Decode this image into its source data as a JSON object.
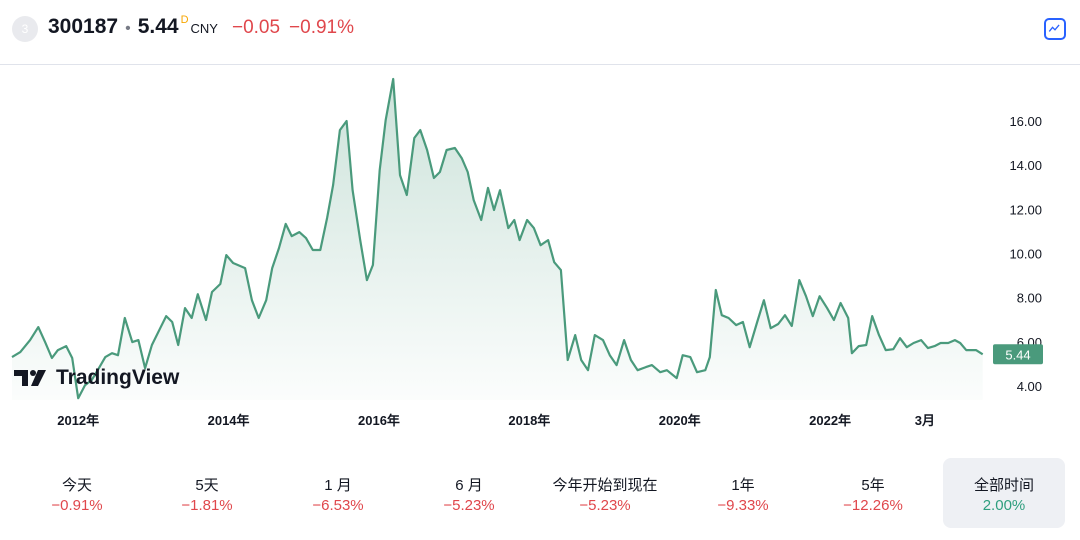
{
  "header": {
    "badge": "3",
    "symbol": "300187",
    "separator": "•",
    "price": "5.44",
    "price_flag": "D",
    "currency": "CNY",
    "change": "−0.05",
    "change_pct": "−0.91%"
  },
  "logo": "TradingView",
  "chart_data": {
    "type": "area",
    "color": "#4a9a7c",
    "x": [
      2011.12,
      2011.23,
      2011.36,
      2011.47,
      2011.56,
      2011.65,
      2011.73,
      2011.84,
      2011.92,
      2012.0,
      2012.09,
      2012.18,
      2012.26,
      2012.36,
      2012.45,
      2012.53,
      2012.62,
      2012.72,
      2012.8,
      2012.89,
      2012.98,
      2013.09,
      2013.17,
      2013.25,
      2013.33,
      2013.42,
      2013.51,
      2013.59,
      2013.7,
      2013.78,
      2013.89,
      2013.97,
      2014.06,
      2014.22,
      2014.31,
      2014.4,
      2014.5,
      2014.58,
      2014.67,
      2014.76,
      2014.84,
      2014.94,
      2015.03,
      2015.12,
      2015.22,
      2015.31,
      2015.39,
      2015.48,
      2015.57,
      2015.65,
      2015.75,
      2015.84,
      2015.92,
      2016.01,
      2016.09,
      2016.19,
      2016.28,
      2016.37,
      2016.47,
      2016.55,
      2016.64,
      2016.73,
      2016.81,
      2016.9,
      2017.01,
      2017.1,
      2017.18,
      2017.26,
      2017.36,
      2017.45,
      2017.53,
      2017.61,
      2017.72,
      2017.8,
      2017.87,
      2017.97,
      2018.06,
      2018.15,
      2018.25,
      2018.33,
      2018.42,
      2018.51,
      2018.61,
      2018.69,
      2018.78,
      2018.87,
      2018.98,
      2019.07,
      2019.16,
      2019.26,
      2019.35,
      2019.44,
      2019.55,
      2019.63,
      2019.74,
      2019.83,
      2019.96,
      2020.04,
      2020.14,
      2020.23,
      2020.34,
      2020.4,
      2020.48,
      2020.56,
      2020.65,
      2020.75,
      2020.84,
      2020.93,
      2021.03,
      2021.12,
      2021.21,
      2021.31,
      2021.4,
      2021.49,
      2021.59,
      2021.68,
      2021.77,
      2021.86,
      2021.96,
      2022.05,
      2022.14,
      2022.24,
      2022.29,
      2022.38,
      2022.48,
      2022.56,
      2022.65,
      2022.74,
      2022.84,
      2022.93,
      2023.02,
      2023.11,
      2023.21,
      2023.3,
      2023.39,
      2023.47,
      2023.57,
      2023.66,
      2023.73,
      2023.81,
      2023.94,
      2024.03
    ],
    "values": [
      5.31,
      5.54,
      6.08,
      6.67,
      5.99,
      5.27,
      5.63,
      5.81,
      5.27,
      3.45,
      4.04,
      4.27,
      4.72,
      5.31,
      5.49,
      5.4,
      7.08,
      5.99,
      6.08,
      4.81,
      5.86,
      6.62,
      7.17,
      6.9,
      5.86,
      7.53,
      7.08,
      8.16,
      6.99,
      8.26,
      8.62,
      9.93,
      9.57,
      9.34,
      7.89,
      7.08,
      7.89,
      9.34,
      10.25,
      11.34,
      10.79,
      10.97,
      10.7,
      10.16,
      10.16,
      11.61,
      13.1,
      15.59,
      16.0,
      12.87,
      10.61,
      8.8,
      9.48,
      13.78,
      16.05,
      17.9,
      13.55,
      12.65,
      15.23,
      15.59,
      14.69,
      13.42,
      13.69,
      14.69,
      14.78,
      14.32,
      13.69,
      12.42,
      11.52,
      12.97,
      11.97,
      12.87,
      11.15,
      11.52,
      10.61,
      11.52,
      11.15,
      10.38,
      10.61,
      9.61,
      9.25,
      5.18,
      6.31,
      5.18,
      4.72,
      6.31,
      6.08,
      5.4,
      4.95,
      6.08,
      5.18,
      4.72,
      4.86,
      4.95,
      4.63,
      4.72,
      4.36,
      5.4,
      5.31,
      4.63,
      4.72,
      5.31,
      8.35,
      7.21,
      7.08,
      6.76,
      6.9,
      5.76,
      6.9,
      7.89,
      6.62,
      6.81,
      7.21,
      6.72,
      8.8,
      8.07,
      7.17,
      8.07,
      7.53,
      6.99,
      7.76,
      7.08,
      5.49,
      5.81,
      5.86,
      7.17,
      6.31,
      5.63,
      5.67,
      6.17,
      5.76,
      5.95,
      6.08,
      5.72,
      5.81,
      5.95,
      5.95,
      6.08,
      5.95,
      5.63,
      5.63,
      5.44
    ],
    "xlim": [
      2010.96,
      2024.06
    ],
    "xticks": [
      {
        "value": 2012,
        "label": "2012年"
      },
      {
        "value": 2014,
        "label": "2014年"
      },
      {
        "value": 2016,
        "label": "2016年"
      },
      {
        "value": 2018,
        "label": "2018年"
      },
      {
        "value": 2020,
        "label": "2020年"
      },
      {
        "value": 2022,
        "label": "2022年"
      },
      {
        "value": 2023.26,
        "label": "3月"
      }
    ],
    "ylim": [
      3.37,
      18.4
    ],
    "yticks": [
      {
        "value": 4,
        "label": "4.00"
      },
      {
        "value": 6,
        "label": "6.00"
      },
      {
        "value": 8,
        "label": "8.00"
      },
      {
        "value": 10,
        "label": "10.00"
      },
      {
        "value": 12,
        "label": "12.00"
      },
      {
        "value": 14,
        "label": "14.00"
      },
      {
        "value": 16,
        "label": "16.00"
      }
    ]
  },
  "periods": [
    {
      "label": "今天",
      "change": "−0.91%"
    },
    {
      "label": "5天",
      "change": "−1.81%"
    },
    {
      "label": "1 月",
      "change": "−6.53%"
    },
    {
      "label": "6 月",
      "change": "−5.23%"
    },
    {
      "label": "今年开始到现在",
      "change": "−5.23%"
    },
    {
      "label": "1年",
      "change": "−9.33%"
    },
    {
      "label": "5年",
      "change": "−12.26%"
    },
    {
      "label": "全部时间",
      "change": "2.00%"
    }
  ]
}
